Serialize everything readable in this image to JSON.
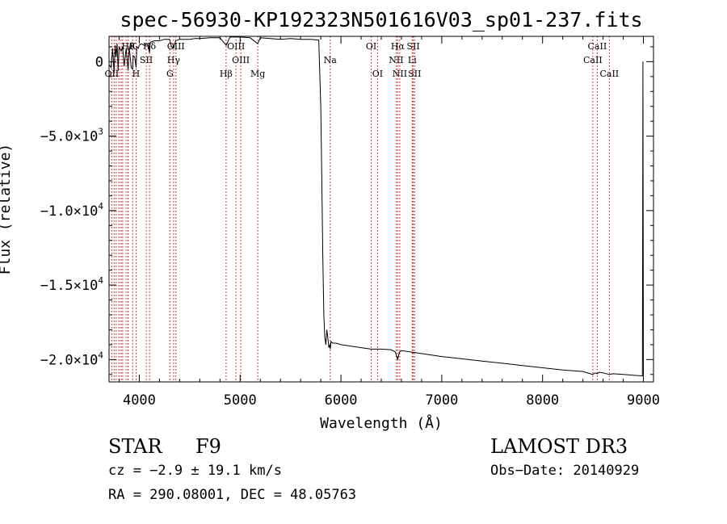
{
  "chart_data": {
    "type": "line",
    "title": "spec-56930-KP192323N501616V03_sp01-237.fits",
    "xlabel": "Wavelength (Å)",
    "ylabel": "Flux (relative)",
    "xlim": [
      3700,
      9100
    ],
    "ylim": [
      -21500,
      1700
    ],
    "x_ticks": [
      4000,
      5000,
      6000,
      7000,
      8000,
      9000
    ],
    "x_tick_labels": [
      "4000",
      "5000",
      "6000",
      "7000",
      "8000",
      "9000"
    ],
    "y_ticks": [
      0,
      -5000,
      -10000,
      -15000,
      -20000
    ],
    "y_tick_labels": [
      {
        "text": "0",
        "exp": ""
      },
      {
        "text": "−5.0×10",
        "exp": "3"
      },
      {
        "text": "−1.0×10",
        "exp": "4"
      },
      {
        "text": "−1.5×10",
        "exp": "4"
      },
      {
        "text": "−2.0×10",
        "exp": "4"
      }
    ],
    "series": [
      {
        "name": "spectrum",
        "x": [
          3700,
          3720,
          3735,
          3750,
          3760,
          3770,
          3780,
          3790,
          3797,
          3800,
          3820,
          3835,
          3850,
          3870,
          3889,
          3900,
          3920,
          3934,
          3940,
          3955,
          3968,
          3975,
          3990,
          4000,
          4020,
          4050,
          4080,
          4101,
          4110,
          4150,
          4200,
          4250,
          4300,
          4320,
          4340,
          4360,
          4400,
          4450,
          4500,
          4550,
          4600,
          4700,
          4800,
          4861,
          4900,
          5000,
          5100,
          5175,
          5200,
          5300,
          5400,
          5500,
          5600,
          5700,
          5780,
          5800,
          5810,
          5820,
          5830,
          5840,
          5850,
          5860,
          5870,
          5880,
          5890,
          5895,
          5900,
          5920,
          5950,
          6000,
          6100,
          6200,
          6300,
          6400,
          6500,
          6540,
          6563,
          6580,
          6600,
          6700,
          6800,
          6900,
          7000,
          7200,
          7400,
          7600,
          7800,
          8000,
          8200,
          8400,
          8498,
          8520,
          8542,
          8560,
          8600,
          8662,
          8700,
          8800,
          8900,
          8990,
          8995,
          9000
        ],
        "y": [
          -200,
          -400,
          900,
          -800,
          1100,
          300,
          1200,
          -600,
          500,
          1000,
          700,
          1000,
          -300,
          900,
          -600,
          1000,
          -400,
          -500,
          400,
          300,
          -400,
          1000,
          900,
          1100,
          1200,
          1100,
          1200,
          600,
          1300,
          1400,
          1400,
          1500,
          1500,
          1000,
          900,
          1400,
          1500,
          1500,
          1500,
          1550,
          1550,
          1600,
          1600,
          1100,
          1650,
          1650,
          1600,
          1200,
          1600,
          1550,
          1500,
          1550,
          1500,
          1500,
          1450,
          -3000,
          -8000,
          -13000,
          -17000,
          -18500,
          -19000,
          -18000,
          -18500,
          -19200,
          -19000,
          -19300,
          -18800,
          -18900,
          -18900,
          -19000,
          -19100,
          -19200,
          -19300,
          -19300,
          -19350,
          -19500,
          -20000,
          -19500,
          -19400,
          -19500,
          -19600,
          -19700,
          -19800,
          -19950,
          -20100,
          -20250,
          -20400,
          -20550,
          -20700,
          -20800,
          -21000,
          -20900,
          -20950,
          -20850,
          -20900,
          -21000,
          -20950,
          -21000,
          -21050,
          -21100,
          0,
          -21100
        ]
      }
    ],
    "lines": [
      {
        "wl": 3727,
        "label": "OII",
        "row": 2
      },
      {
        "wl": 3750,
        "label": "",
        "row": 0
      },
      {
        "wl": 3771,
        "label": "",
        "row": 0
      },
      {
        "wl": 3798,
        "label": "",
        "row": 0
      },
      {
        "wl": 3820,
        "label": "",
        "row": 0
      },
      {
        "wl": 3835,
        "label": "",
        "row": 0
      },
      {
        "wl": 3869,
        "label": "",
        "row": 0
      },
      {
        "wl": 3889,
        "label": "Hθ",
        "row": 0
      },
      {
        "wl": 3934,
        "label": "K",
        "row": 0
      },
      {
        "wl": 3968,
        "label": "H",
        "row": 2
      },
      {
        "wl": 4101,
        "label": "Hδ",
        "row": 0
      },
      {
        "wl": 4069,
        "label": "SII",
        "row": 1
      },
      {
        "wl": 4304,
        "label": "G",
        "row": 2
      },
      {
        "wl": 4340,
        "label": "Hγ",
        "row": 1
      },
      {
        "wl": 4363,
        "label": "OIII",
        "row": 0
      },
      {
        "wl": 4861,
        "label": "Hβ",
        "row": 2
      },
      {
        "wl": 4959,
        "label": "OIII",
        "row": 0
      },
      {
        "wl": 5007,
        "label": "OIII",
        "row": 1
      },
      {
        "wl": 5175,
        "label": "Mg",
        "row": 2
      },
      {
        "wl": 5893,
        "label": "Na",
        "row": 1
      },
      {
        "wl": 6300,
        "label": "OI",
        "row": 0
      },
      {
        "wl": 6363,
        "label": "OI",
        "row": 2
      },
      {
        "wl": 6548,
        "label": "NII",
        "row": 1
      },
      {
        "wl": 6563,
        "label": "Hα",
        "row": 0
      },
      {
        "wl": 6584,
        "label": "NII",
        "row": 2
      },
      {
        "wl": 6707,
        "label": "Li",
        "row": 1
      },
      {
        "wl": 6717,
        "label": "SII",
        "row": 0
      },
      {
        "wl": 6731,
        "label": "SII",
        "row": 2
      },
      {
        "wl": 8498,
        "label": "CaII",
        "row": 1
      },
      {
        "wl": 8542,
        "label": "CaII",
        "row": 0
      },
      {
        "wl": 8662,
        "label": "CaII",
        "row": 2
      }
    ]
  },
  "info": {
    "class_label": "STAR",
    "subclass": "F9",
    "survey": "LAMOST DR3",
    "cz": "cz = −2.9 ± 19.1 km/s",
    "obs_date": "Obs−Date: 20140929",
    "coords": "RA = 290.08001, DEC =  48.05763"
  }
}
